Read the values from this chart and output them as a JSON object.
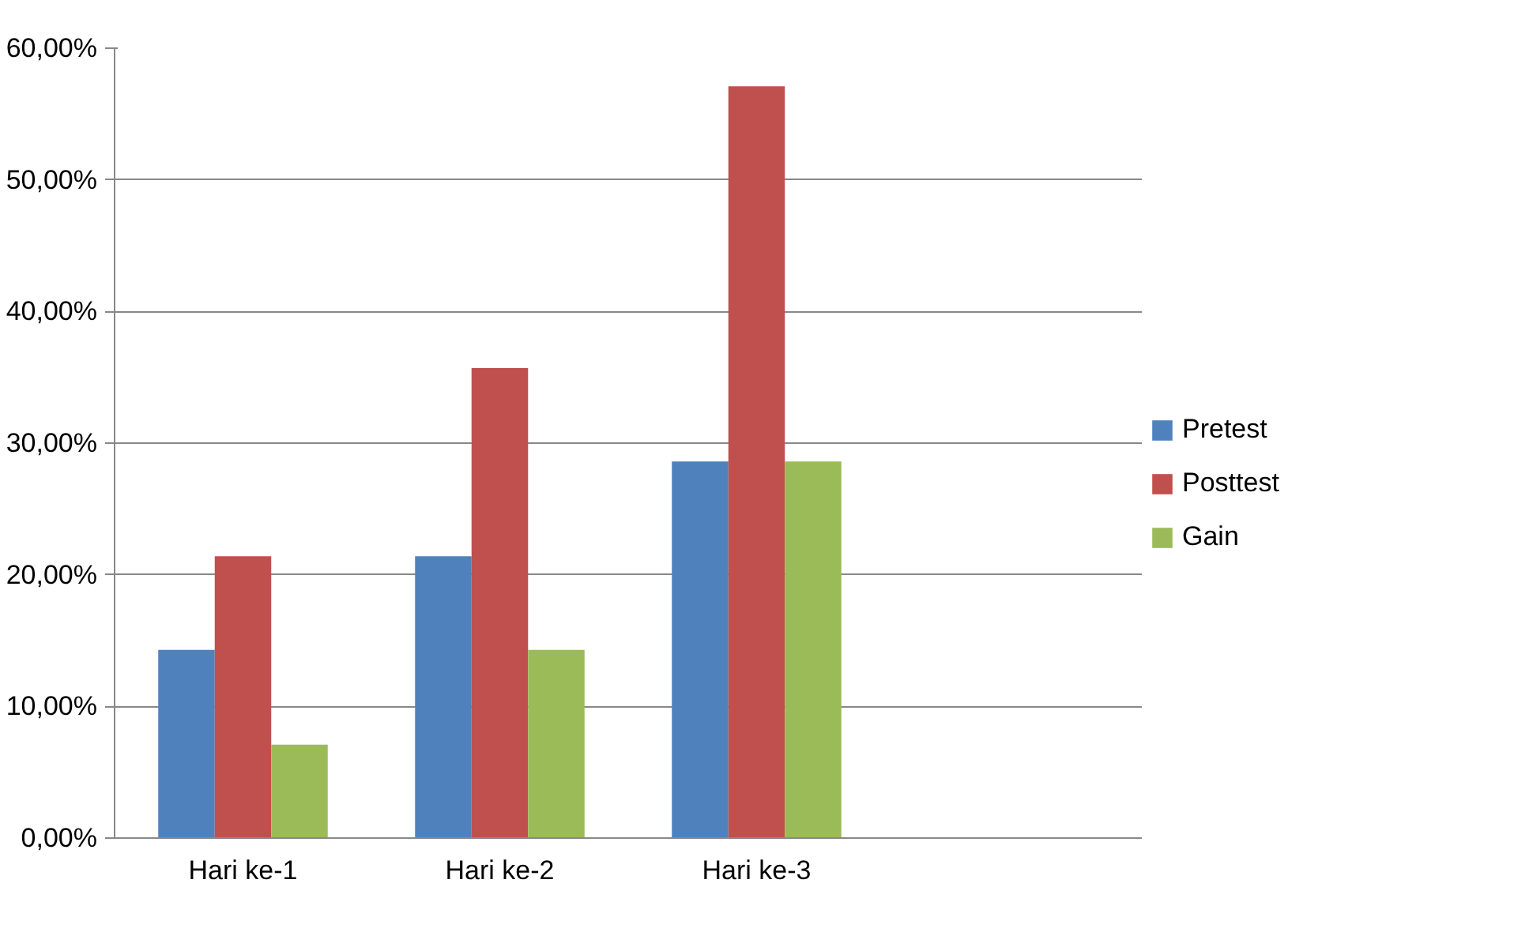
{
  "chart_data": {
    "type": "bar",
    "categories": [
      "Hari ke-1",
      "Hari ke-2",
      "Hari ke-3",
      null
    ],
    "series": [
      {
        "name": "Pretest",
        "color": "#4f81bd",
        "values": [
          14.3,
          21.4,
          28.6,
          null
        ]
      },
      {
        "name": "Posttest",
        "color": "#c0504d",
        "values": [
          21.4,
          35.7,
          57.1,
          null
        ]
      },
      {
        "name": "Gain",
        "color": "#9bbb59",
        "values": [
          7.1,
          14.3,
          28.6,
          null
        ]
      }
    ],
    "ylim": [
      0,
      60
    ],
    "yticks": [
      {
        "value": 0,
        "label": "0,00%"
      },
      {
        "value": 10,
        "label": "10,00%"
      },
      {
        "value": 20,
        "label": "20,00%"
      },
      {
        "value": 30,
        "label": "30,00%"
      },
      {
        "value": 40,
        "label": "40,00%"
      },
      {
        "value": 50,
        "label": "50,00%"
      },
      {
        "value": 60,
        "label": "60,00%"
      }
    ],
    "grid": "y",
    "legend": "right"
  }
}
